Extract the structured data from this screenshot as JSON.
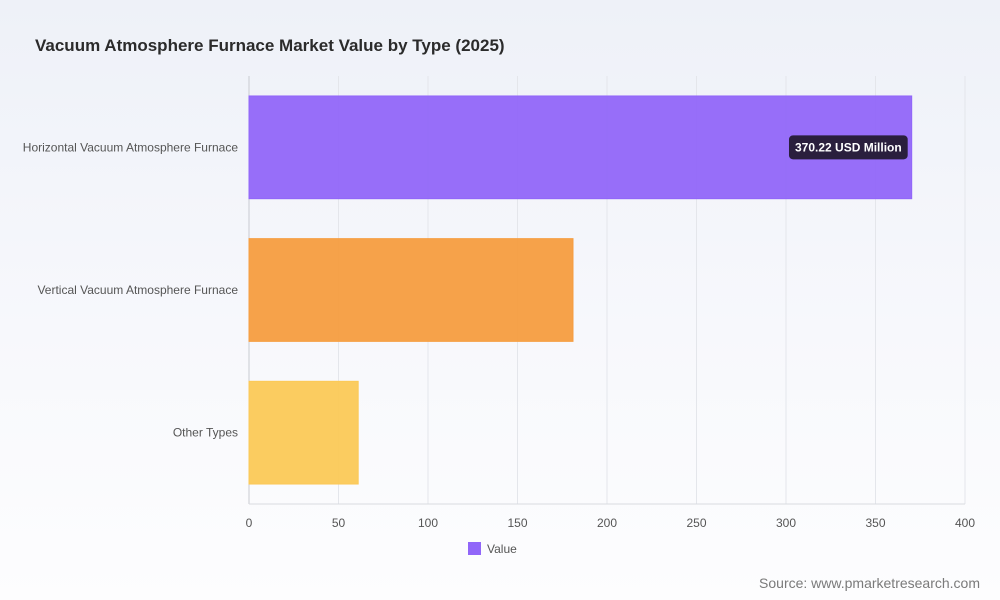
{
  "title": "Vacuum Atmosphere Furnace Market Value by Type (2025)",
  "source": "Source: www.pmarketresearch.com",
  "chart_data": {
    "type": "bar",
    "orientation": "horizontal",
    "categories": [
      "Horizontal Vacuum Atmosphere Furnace",
      "Vertical Vacuum Atmosphere Furnace",
      "Other Types"
    ],
    "series": [
      {
        "name": "Value",
        "values": [
          370.22,
          181,
          61
        ]
      }
    ],
    "bar_colors": [
      "#9166f9",
      "#f69d40",
      "#fbc957"
    ],
    "legend_color": "#9166f9",
    "xlim": [
      0,
      400
    ],
    "xticks": [
      0,
      50,
      100,
      150,
      200,
      250,
      300,
      350,
      400
    ],
    "grid": true,
    "legend_position": "bottom",
    "tooltip": {
      "category_index": 0,
      "text": "370.22 USD Million"
    }
  }
}
